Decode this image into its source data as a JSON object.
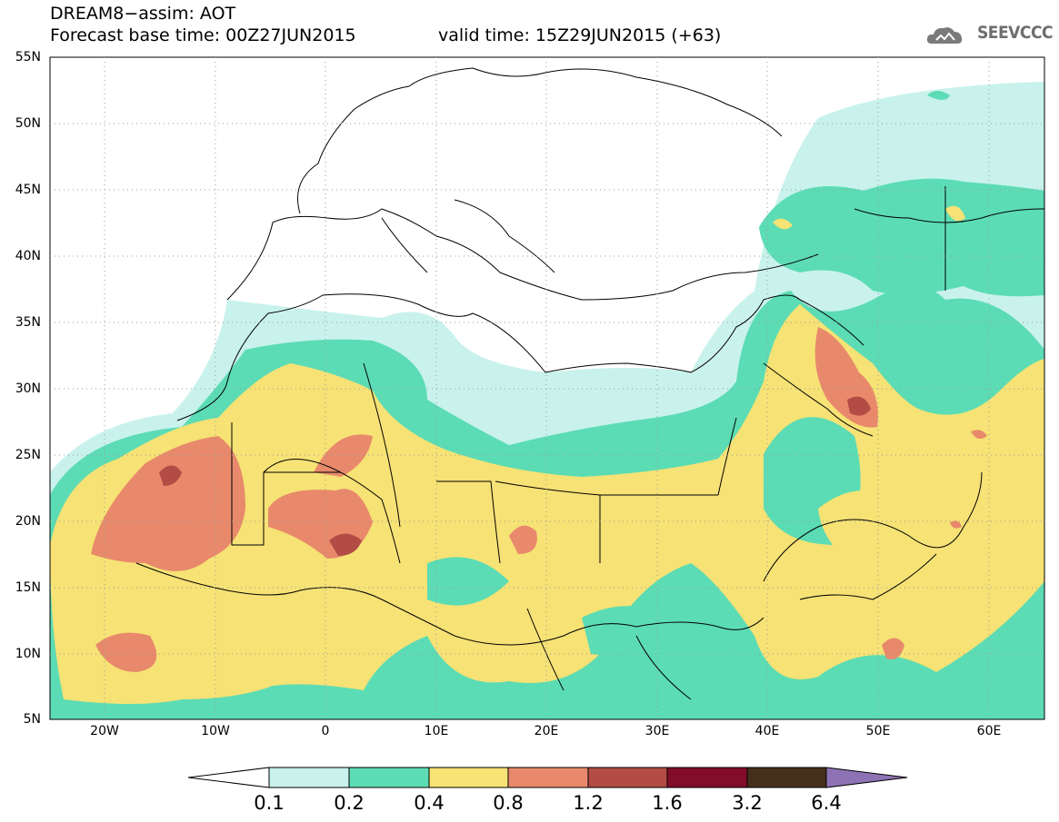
{
  "header": {
    "title_line1": "DREAM8−assim: AOT",
    "title_line2": "Forecast base time: 00Z27JUN2015",
    "valid_time": "valid time: 15Z29JUN2015 (+63)",
    "logo_text": "SEEVCCC"
  },
  "map": {
    "variable": "Aerosol optical thickness",
    "projection": "lat-lon",
    "lon_range": [
      -25,
      65
    ],
    "lat_range": [
      5,
      55
    ],
    "lat_ticks": [
      "55N",
      "50N",
      "45N",
      "40N",
      "35N",
      "30N",
      "25N",
      "20N",
      "15N",
      "10N",
      "5N"
    ],
    "lon_ticks": [
      "20W",
      "10W",
      "0",
      "10E",
      "20E",
      "30E",
      "40E",
      "50E",
      "60E"
    ]
  },
  "colorbar": {
    "labels": [
      "0.1",
      "0.2",
      "0.4",
      "0.8",
      "1.2",
      "1.6",
      "3.2",
      "6.4"
    ],
    "colors": [
      "#ffffff",
      "#c9f2ec",
      "#5cdcb4",
      "#f6e275",
      "#e8896b",
      "#b24c44",
      "#820d2a",
      "#462f1a",
      "#8e73b4"
    ]
  },
  "colors": {
    "c01": "#c9f2ec",
    "c02": "#5cdcb4",
    "c04": "#f6e275",
    "c08": "#e8896b",
    "c12": "#b24c44",
    "border": "#000000"
  }
}
